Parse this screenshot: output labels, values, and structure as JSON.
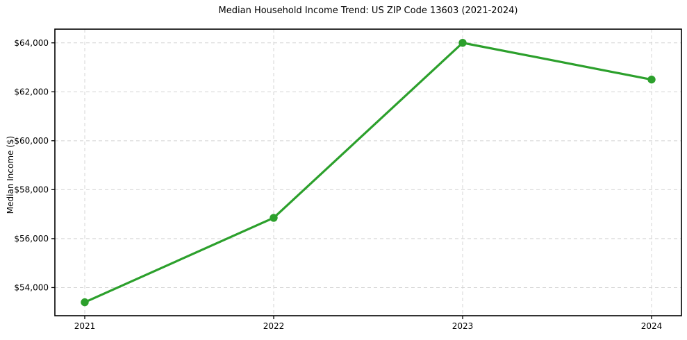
{
  "chart_data": {
    "type": "line",
    "title": "Median Household Income Trend: US ZIP Code 13603 (2021-2024)",
    "xlabel": "",
    "ylabel": "Median Income ($)",
    "x": [
      "2021",
      "2022",
      "2023",
      "2024"
    ],
    "series": [
      {
        "name": "Median Household Income",
        "values": [
          53400,
          56850,
          64000,
          62500
        ]
      }
    ],
    "yticks": [
      54000,
      56000,
      58000,
      60000,
      62000,
      64000
    ],
    "ylim": [
      52850,
      64560
    ],
    "y_tick_prefix": "$",
    "grid": true,
    "grid_style": "dashed",
    "legend": "none",
    "colors": {
      "line": "#2ca02c",
      "marker": "#2ca02c",
      "grid": "#d4d4d4",
      "axis": "#000000",
      "text": "#000000",
      "background": "#ffffff"
    }
  }
}
